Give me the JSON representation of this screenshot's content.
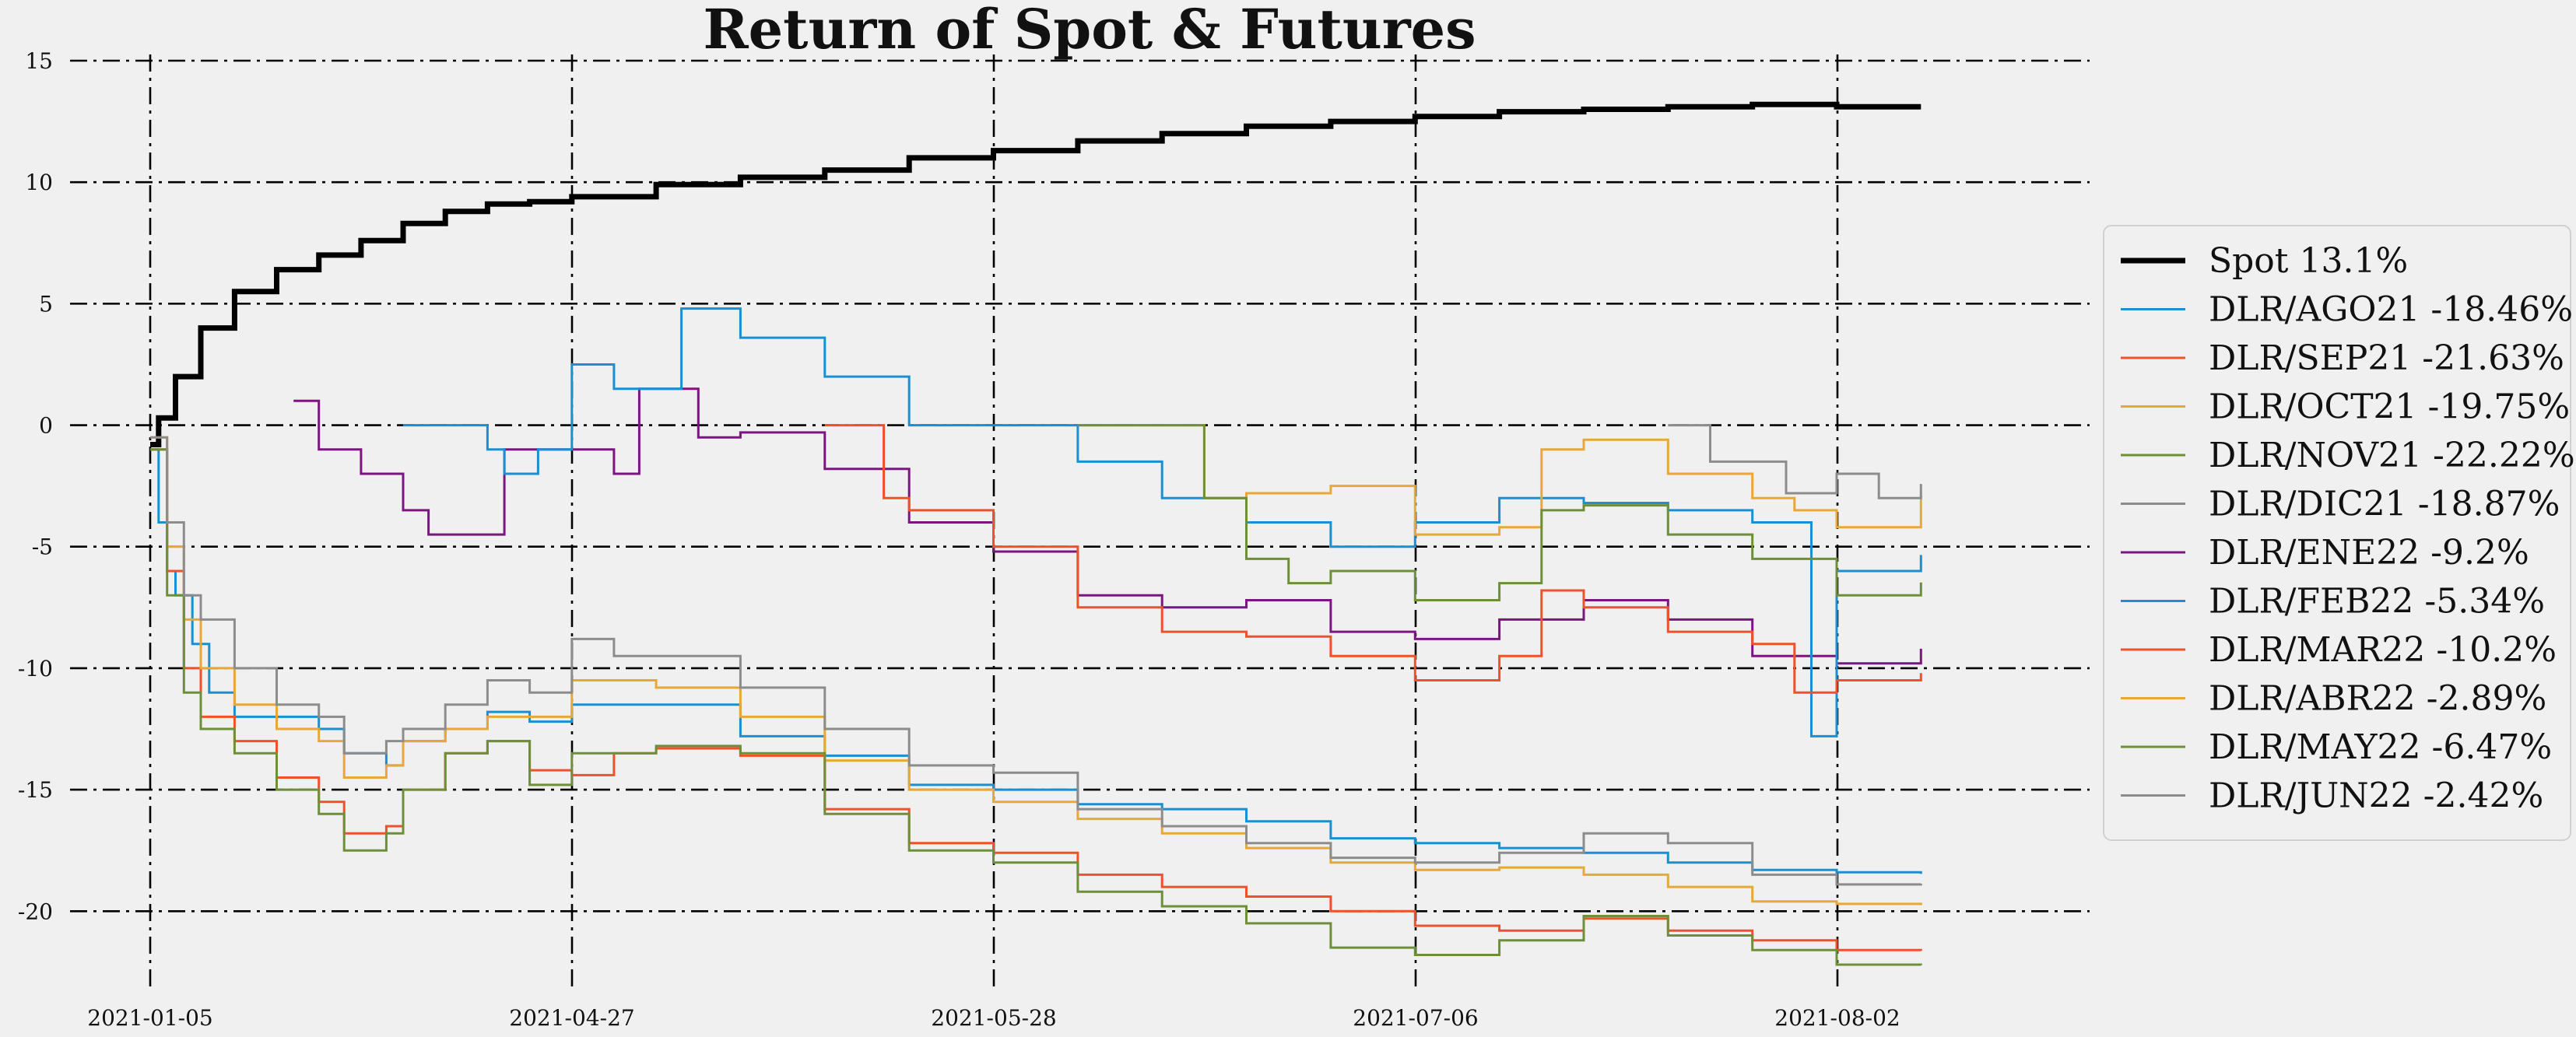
{
  "chart_data": {
    "type": "line",
    "title": "Return of Spot & Futures",
    "xlabel": "",
    "ylabel": "",
    "x_tick_labels": [
      "2021-01-05",
      "2021-04-27",
      "2021-05-28",
      "2021-07-06",
      "2021-08-02"
    ],
    "y_ticks": [
      -20,
      -15,
      -10,
      -5,
      0,
      5,
      10,
      15
    ],
    "ylim": [
      -23,
      15
    ],
    "x_range": [
      0,
      20
    ],
    "grid": true,
    "legend_position": "center-right",
    "series": [
      {
        "name": "Spot 13.1%",
        "color": "#000000",
        "width": 7,
        "points": [
          [
            0,
            -0.8
          ],
          [
            0.1,
            0.3
          ],
          [
            0.3,
            2
          ],
          [
            0.6,
            4
          ],
          [
            1,
            5.5
          ],
          [
            1.5,
            6.4
          ],
          [
            2,
            7
          ],
          [
            2.5,
            7.6
          ],
          [
            3,
            8.3
          ],
          [
            3.5,
            8.8
          ],
          [
            4,
            9.1
          ],
          [
            4.5,
            9.2
          ],
          [
            5,
            9.4
          ],
          [
            6,
            9.9
          ],
          [
            7,
            10.2
          ],
          [
            8,
            10.5
          ],
          [
            9,
            11
          ],
          [
            10,
            11.3
          ],
          [
            11,
            11.7
          ],
          [
            12,
            12
          ],
          [
            13,
            12.3
          ],
          [
            14,
            12.5
          ],
          [
            15,
            12.7
          ],
          [
            16,
            12.9
          ],
          [
            17,
            13
          ],
          [
            18,
            13.1
          ],
          [
            19,
            13.2
          ],
          [
            20,
            13.1
          ],
          [
            21,
            13.1
          ]
        ]
      },
      {
        "name": "DLR/AGO21 -18.46%",
        "color": "#1a8fd1",
        "width": 3,
        "points": [
          [
            0,
            -1
          ],
          [
            0.1,
            -4
          ],
          [
            0.2,
            -6
          ],
          [
            0.3,
            -7
          ],
          [
            0.5,
            -9
          ],
          [
            0.7,
            -11
          ],
          [
            1,
            -12
          ],
          [
            1.5,
            -12
          ],
          [
            2,
            -12.5
          ],
          [
            2.3,
            -13.5
          ],
          [
            2.8,
            -14
          ],
          [
            3,
            -13
          ],
          [
            3.5,
            -12.5
          ],
          [
            4,
            -11.8
          ],
          [
            4.5,
            -12.2
          ],
          [
            5,
            -11.5
          ],
          [
            6,
            -11.5
          ],
          [
            7,
            -12.8
          ],
          [
            8,
            -13.6
          ],
          [
            9,
            -14.8
          ],
          [
            10,
            -15
          ],
          [
            11,
            -15.6
          ],
          [
            12,
            -15.8
          ],
          [
            13,
            -16.3
          ],
          [
            14,
            -17
          ],
          [
            15,
            -17.2
          ],
          [
            16,
            -17.4
          ],
          [
            17,
            -17.6
          ],
          [
            18,
            -18
          ],
          [
            19,
            -18.3
          ],
          [
            20,
            -18.4
          ],
          [
            21,
            -18.46
          ]
        ]
      },
      {
        "name": "DLR/SEP21 -21.63%",
        "color": "#f0512a",
        "width": 3,
        "points": [
          [
            0,
            -1
          ],
          [
            0.2,
            -6
          ],
          [
            0.4,
            -10
          ],
          [
            0.6,
            -12
          ],
          [
            1,
            -13
          ],
          [
            1.5,
            -14.5
          ],
          [
            2,
            -15.5
          ],
          [
            2.3,
            -16.8
          ],
          [
            2.8,
            -16.5
          ],
          [
            3,
            -15
          ],
          [
            3.5,
            -13.5
          ],
          [
            4,
            -13
          ],
          [
            4.5,
            -14.2
          ],
          [
            5,
            -14.4
          ],
          [
            5.5,
            -13.5
          ],
          [
            6,
            -13.3
          ],
          [
            7,
            -13.6
          ],
          [
            8,
            -15.8
          ],
          [
            9,
            -17.2
          ],
          [
            10,
            -17.6
          ],
          [
            11,
            -18.5
          ],
          [
            12,
            -19
          ],
          [
            13,
            -19.4
          ],
          [
            14,
            -20
          ],
          [
            15,
            -20.6
          ],
          [
            16,
            -20.8
          ],
          [
            17,
            -20.3
          ],
          [
            18,
            -20.8
          ],
          [
            19,
            -21.2
          ],
          [
            20,
            -21.6
          ],
          [
            21,
            -21.63
          ]
        ]
      },
      {
        "name": "DLR/OCT21 -19.75%",
        "color": "#e8a838",
        "width": 3,
        "points": [
          [
            0,
            -0.5
          ],
          [
            0.2,
            -5
          ],
          [
            0.4,
            -8
          ],
          [
            0.6,
            -10
          ],
          [
            1,
            -11.5
          ],
          [
            1.5,
            -12.5
          ],
          [
            2,
            -13
          ],
          [
            2.3,
            -14.5
          ],
          [
            2.8,
            -14
          ],
          [
            3,
            -13
          ],
          [
            3.5,
            -12.5
          ],
          [
            4,
            -12
          ],
          [
            4.5,
            -12
          ],
          [
            5,
            -10.5
          ],
          [
            6,
            -10.8
          ],
          [
            7,
            -12
          ],
          [
            8,
            -13.8
          ],
          [
            9,
            -15
          ],
          [
            10,
            -15.5
          ],
          [
            11,
            -16.2
          ],
          [
            12,
            -16.8
          ],
          [
            13,
            -17.4
          ],
          [
            14,
            -18
          ],
          [
            15,
            -18.3
          ],
          [
            16,
            -18.2
          ],
          [
            17,
            -18.5
          ],
          [
            18,
            -19
          ],
          [
            19,
            -19.6
          ],
          [
            20,
            -19.7
          ],
          [
            21,
            -19.75
          ]
        ]
      },
      {
        "name": "DLR/NOV21 -22.22%",
        "color": "#6e8f3a",
        "width": 3,
        "points": [
          [
            0,
            -1
          ],
          [
            0.2,
            -7
          ],
          [
            0.4,
            -11
          ],
          [
            0.6,
            -12.5
          ],
          [
            1,
            -13.5
          ],
          [
            1.5,
            -15
          ],
          [
            2,
            -16
          ],
          [
            2.3,
            -17.5
          ],
          [
            2.8,
            -16.8
          ],
          [
            3,
            -15
          ],
          [
            3.5,
            -13.5
          ],
          [
            4,
            -13
          ],
          [
            4.5,
            -14.8
          ],
          [
            5,
            -13.5
          ],
          [
            6,
            -13.2
          ],
          [
            7,
            -13.5
          ],
          [
            8,
            -16
          ],
          [
            9,
            -17.5
          ],
          [
            10,
            -18
          ],
          [
            11,
            -19.2
          ],
          [
            12,
            -19.8
          ],
          [
            13,
            -20.5
          ],
          [
            14,
            -21.5
          ],
          [
            15,
            -21.8
          ],
          [
            16,
            -21.2
          ],
          [
            17,
            -20.2
          ],
          [
            18,
            -21
          ],
          [
            19,
            -21.6
          ],
          [
            20,
            -22.2
          ],
          [
            21,
            -22.22
          ]
        ]
      },
      {
        "name": "DLR/DIC21 -18.87%",
        "color": "#8c8c8c",
        "width": 3,
        "points": [
          [
            0,
            -0.5
          ],
          [
            0.2,
            -4
          ],
          [
            0.4,
            -7
          ],
          [
            0.6,
            -8
          ],
          [
            1,
            -10
          ],
          [
            1.5,
            -11.5
          ],
          [
            2,
            -12
          ],
          [
            2.3,
            -13.5
          ],
          [
            2.8,
            -13
          ],
          [
            3,
            -12.5
          ],
          [
            3.5,
            -11.5
          ],
          [
            4,
            -10.5
          ],
          [
            4.5,
            -11
          ],
          [
            5,
            -8.8
          ],
          [
            5.5,
            -9.5
          ],
          [
            6,
            -9.5
          ],
          [
            7,
            -10.8
          ],
          [
            8,
            -12.5
          ],
          [
            9,
            -14
          ],
          [
            10,
            -14.3
          ],
          [
            11,
            -15.8
          ],
          [
            12,
            -16.5
          ],
          [
            13,
            -17.2
          ],
          [
            14,
            -17.8
          ],
          [
            15,
            -18
          ],
          [
            16,
            -17.6
          ],
          [
            17,
            -16.8
          ],
          [
            18,
            -17.2
          ],
          [
            19,
            -18.5
          ],
          [
            20,
            -18.9
          ],
          [
            21,
            -18.87
          ]
        ]
      },
      {
        "name": "DLR/ENE22 -9.2%",
        "color": "#7b1580",
        "width": 3,
        "points": [
          [
            1.7,
            1
          ],
          [
            2,
            -1
          ],
          [
            2.5,
            -2
          ],
          [
            3,
            -3.5
          ],
          [
            3.3,
            -4.5
          ],
          [
            4,
            -4.5
          ],
          [
            4.2,
            -1
          ],
          [
            5,
            -1
          ],
          [
            5.5,
            -2
          ],
          [
            5.8,
            1.5
          ],
          [
            6.5,
            -0.5
          ],
          [
            7,
            -0.3
          ],
          [
            8,
            -1.8
          ],
          [
            9,
            -4
          ],
          [
            10,
            -5.2
          ],
          [
            11,
            -7
          ],
          [
            12,
            -7.5
          ],
          [
            13,
            -7.2
          ],
          [
            14,
            -8.5
          ],
          [
            15,
            -8.8
          ],
          [
            16,
            -8
          ],
          [
            17,
            -7.2
          ],
          [
            18,
            -8
          ],
          [
            19,
            -9.5
          ],
          [
            20,
            -9.8
          ],
          [
            21,
            -9.2
          ]
        ]
      },
      {
        "name": "DLR/FEB22 -5.34%",
        "color": "#1a8fd1",
        "width": 3,
        "points": [
          [
            3,
            0
          ],
          [
            4,
            -1
          ],
          [
            4.2,
            -2
          ],
          [
            4.6,
            -1
          ],
          [
            5,
            2.5
          ],
          [
            5.5,
            1.5
          ],
          [
            6,
            1.5
          ],
          [
            6.3,
            4.8
          ],
          [
            7,
            3.6
          ],
          [
            8,
            2
          ],
          [
            9,
            0
          ],
          [
            10,
            0
          ],
          [
            11,
            -1.5
          ],
          [
            12,
            -3
          ],
          [
            13,
            -4
          ],
          [
            14,
            -5
          ],
          [
            15,
            -4
          ],
          [
            16,
            -3
          ],
          [
            17,
            -3.2
          ],
          [
            18,
            -3.5
          ],
          [
            19,
            -4
          ],
          [
            19.7,
            -12.8
          ],
          [
            20,
            -6
          ],
          [
            21,
            -5.34
          ]
        ]
      },
      {
        "name": "DLR/MAR22 -10.2%",
        "color": "#f0512a",
        "width": 3,
        "points": [
          [
            8,
            0
          ],
          [
            8.5,
            0
          ],
          [
            8.7,
            -3
          ],
          [
            9,
            -3.5
          ],
          [
            10,
            -5
          ],
          [
            11,
            -7.5
          ],
          [
            12,
            -8.5
          ],
          [
            13,
            -8.7
          ],
          [
            14,
            -9.5
          ],
          [
            15,
            -10.5
          ],
          [
            16,
            -9.5
          ],
          [
            16.5,
            -6.8
          ],
          [
            17,
            -7.5
          ],
          [
            18,
            -8.5
          ],
          [
            19,
            -9
          ],
          [
            19.5,
            -11
          ],
          [
            20,
            -10.5
          ],
          [
            21,
            -10.2
          ]
        ]
      },
      {
        "name": "DLR/ABR22 -2.89%",
        "color": "#e8a838",
        "width": 3,
        "points": [
          [
            11,
            0
          ],
          [
            12.2,
            0
          ],
          [
            12.5,
            -3
          ],
          [
            13,
            -2.8
          ],
          [
            14,
            -2.5
          ],
          [
            15,
            -4.5
          ],
          [
            16,
            -4.2
          ],
          [
            16.5,
            -1
          ],
          [
            17,
            -0.6
          ],
          [
            18,
            -2
          ],
          [
            19,
            -3
          ],
          [
            19.5,
            -3.5
          ],
          [
            20,
            -4.2
          ],
          [
            21,
            -2.89
          ]
        ]
      },
      {
        "name": "DLR/MAY22 -6.47%",
        "color": "#6e8f3a",
        "width": 3,
        "points": [
          [
            11,
            0
          ],
          [
            12.2,
            0
          ],
          [
            12.5,
            -3
          ],
          [
            13,
            -5.5
          ],
          [
            13.5,
            -6.5
          ],
          [
            14,
            -6
          ],
          [
            15,
            -7.2
          ],
          [
            16,
            -6.5
          ],
          [
            16.5,
            -3.5
          ],
          [
            17,
            -3.3
          ],
          [
            18,
            -4.5
          ],
          [
            19,
            -5.5
          ],
          [
            20,
            -7
          ],
          [
            21,
            -6.47
          ]
        ]
      },
      {
        "name": "DLR/JUN22 -2.42%",
        "color": "#8c8c8c",
        "width": 3,
        "points": [
          [
            18,
            0
          ],
          [
            18.3,
            0
          ],
          [
            18.5,
            -1.5
          ],
          [
            19.2,
            -1.5
          ],
          [
            19.4,
            -2.8
          ],
          [
            20,
            -2
          ],
          [
            20.5,
            -3
          ],
          [
            21,
            -2.42
          ]
        ]
      }
    ]
  }
}
